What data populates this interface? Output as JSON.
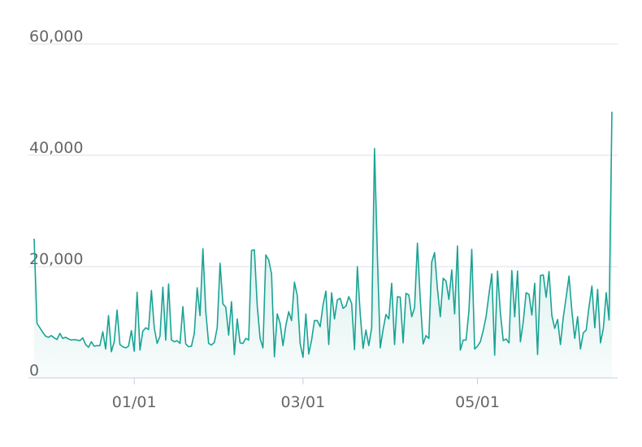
{
  "chart_data": {
    "type": "area",
    "color": "#1aa394",
    "grid": true,
    "ylim": [
      0,
      60000
    ],
    "yticks": [
      0,
      {
        "value": 20000,
        "label": "20,000"
      },
      {
        "value": 40000,
        "label": "40,000"
      },
      {
        "value": 60000,
        "label": "60,000"
      }
    ],
    "categories": [
      null,
      null,
      null,
      null,
      null,
      null,
      null,
      null,
      null,
      null,
      null,
      null,
      null,
      null,
      null,
      null,
      null,
      null,
      null,
      null,
      null,
      null,
      null,
      null,
      null,
      null,
      null,
      null,
      null,
      null,
      null,
      null,
      null,
      null,
      null,
      "01/01",
      null,
      null,
      null,
      null,
      null,
      null,
      null,
      null,
      null,
      null,
      null,
      null,
      null,
      null,
      null,
      null,
      null,
      null,
      null,
      null,
      null,
      null,
      null,
      null,
      null,
      null,
      null,
      null,
      null,
      null,
      null,
      null,
      null,
      null,
      null,
      null,
      null,
      null,
      null,
      null,
      null,
      null,
      null,
      null,
      null,
      null,
      null,
      null,
      null,
      null,
      null,
      null,
      null,
      null,
      null,
      null,
      null,
      null,
      "03/01",
      null,
      null,
      null,
      null,
      null,
      null,
      null,
      null,
      null,
      null,
      null,
      null,
      null,
      null,
      null,
      null,
      null,
      null,
      null,
      null,
      null,
      null,
      null,
      null,
      null,
      null,
      null,
      null,
      null,
      null,
      null,
      null,
      null,
      null,
      null,
      null,
      null,
      null,
      null,
      null,
      null,
      null,
      null,
      null,
      null,
      null,
      null,
      null,
      null,
      null,
      null,
      null,
      null,
      null,
      null,
      null,
      null,
      null,
      null,
      null,
      "05/01",
      null,
      null,
      null,
      null,
      null,
      null,
      null,
      null,
      null,
      null,
      null,
      null,
      null,
      null,
      null,
      null,
      null,
      null,
      null,
      null,
      null,
      null,
      null,
      null,
      null,
      null,
      null,
      null,
      null,
      null,
      null,
      null,
      null,
      null,
      null,
      null,
      null,
      null,
      null,
      null,
      null,
      null,
      null,
      null,
      null,
      null,
      null
    ],
    "values": [
      25000,
      9800,
      9000,
      8200,
      7500,
      7300,
      7600,
      7200,
      6900,
      8000,
      7100,
      7300,
      7000,
      6800,
      6900,
      6800,
      6700,
      7200,
      6000,
      5500,
      6500,
      5700,
      5800,
      5800,
      8300,
      5200,
      11200,
      4700,
      6500,
      12200,
      6000,
      5600,
      5400,
      5700,
      8500,
      4800,
      15400,
      5000,
      8400,
      9000,
      8700,
      15700,
      9000,
      6200,
      7500,
      16300,
      6800,
      16900,
      6800,
      6500,
      6700,
      6200,
      12800,
      6100,
      5600,
      5700,
      8000,
      16200,
      11200,
      23200,
      12000,
      6200,
      5900,
      6400,
      9000,
      20600,
      13300,
      12700,
      7700,
      13700,
      4200,
      10600,
      6300,
      6200,
      7100,
      6800,
      22900,
      23000,
      13000,
      7100,
      5400,
      22100,
      21200,
      18700,
      3800,
      11500,
      9800,
      5800,
      9400,
      11900,
      10300,
      17200,
      14800,
      6200,
      3700,
      11500,
      4300,
      6800,
      10300,
      10300,
      9200,
      13100,
      15600,
      6000,
      15300,
      10600,
      14000,
      14300,
      12500,
      12900,
      14600,
      13400,
      5100,
      20000,
      11500,
      5300,
      8600,
      5800,
      9000,
      41200,
      22000,
      5400,
      8700,
      11400,
      10600,
      17000,
      6000,
      14600,
      14500,
      6300,
      15200,
      14900,
      11000,
      12600,
      24200,
      14000,
      6100,
      7600,
      7100,
      20800,
      22500,
      16000,
      11000,
      17900,
      17400,
      14100,
      19400,
      11500,
      23700,
      5000,
      6800,
      6800,
      12000,
      23100,
      5200,
      5700,
      6500,
      8500,
      11000,
      15000,
      18700,
      4100,
      19200,
      11700,
      6700,
      7000,
      6300,
      19300,
      11000,
      19200,
      6500,
      10100,
      15300,
      15000,
      11300,
      17000,
      4200,
      18400,
      18500,
      14500,
      19100,
      11200,
      8900,
      10500,
      6000,
      10900,
      14500,
      18300,
      12000,
      7100,
      11000,
      5200,
      8100,
      8600,
      12800,
      16500,
      9000,
      15900,
      6300,
      8900,
      15300,
      10400,
      47800
    ]
  }
}
